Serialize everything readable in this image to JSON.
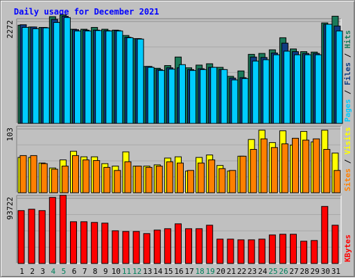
{
  "chart_data": {
    "type": "bar",
    "title": "Daily usage for December 2021",
    "categories": [
      "1",
      "2",
      "3",
      "4",
      "5",
      "6",
      "7",
      "8",
      "9",
      "10",
      "11",
      "12",
      "13",
      "14",
      "15",
      "16",
      "17",
      "18",
      "19",
      "20",
      "21",
      "22",
      "23",
      "24",
      "25",
      "26",
      "27",
      "28",
      "29",
      "30",
      "31"
    ],
    "weekend_days": [
      "4",
      "5",
      "11",
      "12",
      "18",
      "19",
      "25",
      "26"
    ],
    "panels": [
      {
        "id": "top",
        "ymax": 2272,
        "ylabel": "2272",
        "legend": [
          "Pages",
          "Files",
          "Hits"
        ],
        "series": [
          {
            "name": "Hits",
            "color": "#1a7a5a",
            "values": [
              2190,
              2150,
              2140,
              2380,
              2420,
              2100,
              2100,
              2140,
              2100,
              2080,
              1960,
              1890,
              1270,
              1230,
              1290,
              1480,
              1240,
              1300,
              1330,
              1250,
              1050,
              1170,
              1540,
              1560,
              1640,
              1910,
              1660,
              1600,
              1590,
              2240,
              2390
            ]
          },
          {
            "name": "Files",
            "color": "#0f3c82",
            "values": [
              2200,
              2150,
              2140,
              2320,
              2390,
              2090,
              2080,
              2080,
              2070,
              2070,
              1920,
              1890,
              1270,
              1200,
              1240,
              1240,
              1200,
              1220,
              1250,
              1200,
              1010,
              1020,
              1480,
              1470,
              1570,
              1790,
              1600,
              1560,
              1560,
              2210,
              2170
            ]
          },
          {
            "name": "Pages",
            "color": "#00ccff",
            "values": [
              2140,
              2110,
              2130,
              2250,
              2360,
              2060,
              2060,
              2070,
              2060,
              2060,
              1910,
              1880,
              1250,
              1180,
              1210,
              1310,
              1180,
              1200,
              1250,
              1200,
              970,
              1000,
              1390,
              1420,
              1530,
              1610,
              1530,
              1530,
              1530,
              2210,
              2060
            ]
          }
        ]
      },
      {
        "id": "middle",
        "ymax": 103,
        "ylabel": "103",
        "legend": [
          "Sites",
          "Visits"
        ],
        "series": [
          {
            "name": "Visits",
            "color": "#ffff00",
            "values": [
              57,
              57,
              48,
              40,
              53,
              67,
              58,
              58,
              47,
              43,
              66,
              43,
              43,
              45,
              56,
              58,
              35,
              57,
              61,
              44,
              35,
              59,
              86,
              101,
              81,
              100,
              77,
              99,
              82,
              101,
              64
            ]
          },
          {
            "name": "Sites",
            "color": "#ff8000",
            "values": [
              60,
              60,
              47,
              38,
              43,
              60,
              53,
              52,
              41,
              36,
              50,
              43,
              41,
              43,
              50,
              48,
              36,
              48,
              53,
              39,
              36,
              59,
              70,
              87,
              73,
              79,
              88,
              85,
              87,
              70,
              36
            ]
          }
        ]
      },
      {
        "id": "bottom",
        "ymax": 93722,
        "ylabel": "93722",
        "legend": [
          "KBytes"
        ],
        "series": [
          {
            "name": "KBytes",
            "color": "#ff0000",
            "values": [
              76000,
              78000,
              76000,
              95000,
              98000,
              60000,
              60000,
              59000,
              58000,
              47000,
              46000,
              46000,
              43000,
              48000,
              50000,
              57000,
              50000,
              50000,
              55000,
              35000,
              35000,
              34000,
              34000,
              35000,
              41000,
              42000,
              42000,
              32000,
              33000,
              82000,
              55000
            ]
          }
        ]
      }
    ]
  },
  "colors": {
    "title": "#0000ff",
    "pages": "#00ccff",
    "files": "#0f3c82",
    "hits": "#1a7a5a",
    "sites": "#ff8000",
    "visits": "#ffff00",
    "kbytes": "#ff0000",
    "weekday_label": "#000000",
    "weekend_label": "#00805c"
  }
}
